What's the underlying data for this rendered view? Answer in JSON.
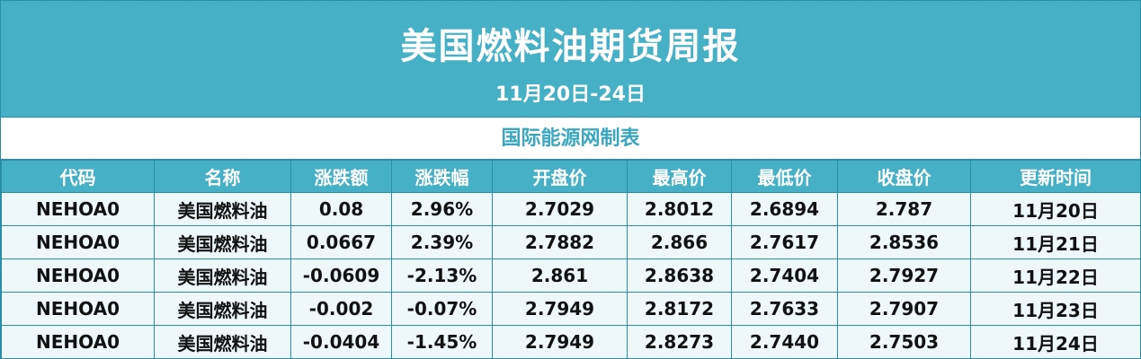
{
  "title": "美国燃料油期货周报",
  "date_range": "11月20日-24日",
  "source": "国际能源网制表",
  "table": {
    "headers": [
      "代码",
      "名称",
      "涨跌额",
      "涨跌幅",
      "开盘价",
      "最高价",
      "最低价",
      "收盘价",
      "更新时间"
    ],
    "rows": [
      [
        "NEHOA0",
        "美国燃料油",
        "0.08",
        "2.96%",
        "2.7029",
        "2.8012",
        "2.6894",
        "2.787",
        "11月20日"
      ],
      [
        "NEHOA0",
        "美国燃料油",
        "0.0667",
        "2.39%",
        "2.7882",
        "2.866",
        "2.7617",
        "2.8536",
        "11月21日"
      ],
      [
        "NEHOA0",
        "美国燃料油",
        "-0.0609",
        "-2.13%",
        "2.861",
        "2.8638",
        "2.7404",
        "2.7927",
        "11月22日"
      ],
      [
        "NEHOA0",
        "美国燃料油",
        "-0.002",
        "-0.07%",
        "2.7949",
        "2.8172",
        "2.7633",
        "2.7907",
        "11月23日"
      ],
      [
        "NEHOA0",
        "美国燃料油",
        "-0.0404",
        "-1.45%",
        "2.7949",
        "2.8273",
        "2.7440",
        "2.7503",
        "11月24日"
      ]
    ]
  },
  "colors": {
    "header_bg": "#45b0c6",
    "row_bg": "#eef7f9",
    "border": "#2a8ea8"
  }
}
